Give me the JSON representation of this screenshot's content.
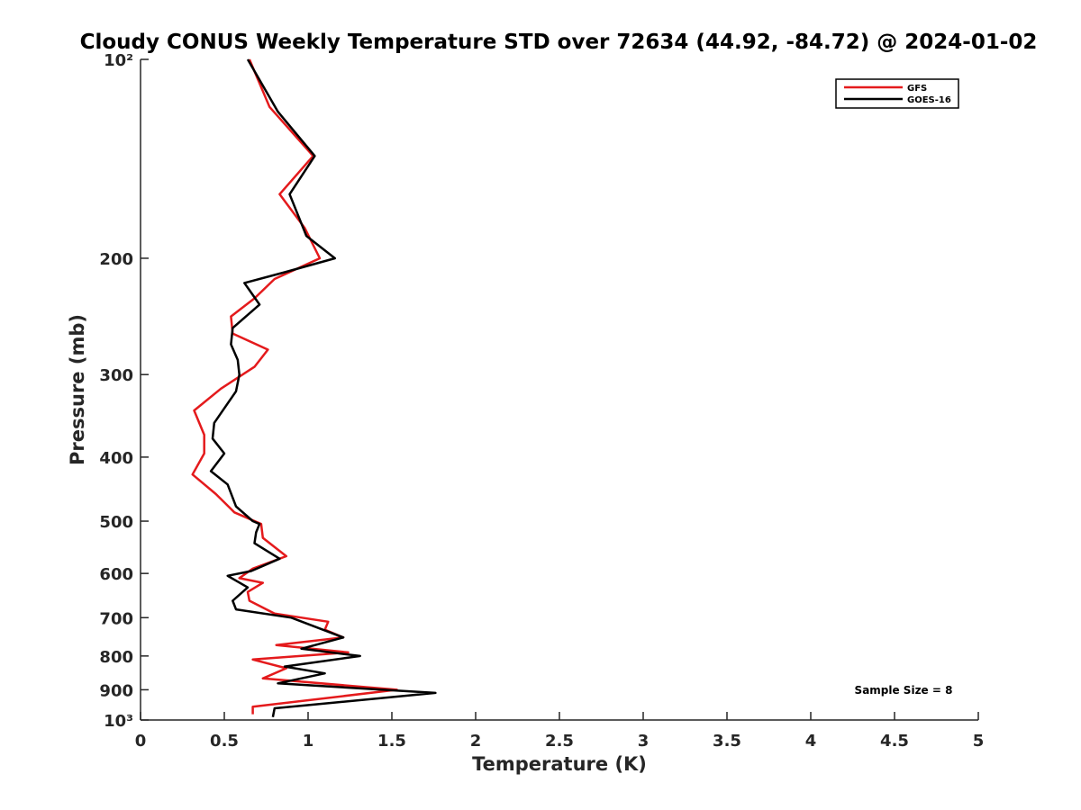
{
  "chart_data": {
    "type": "line",
    "title": "Cloudy CONUS Weekly Temperature STD over 72634 (44.92, -84.72) @ 2024-01-02",
    "xlabel": "Temperature (K)",
    "ylabel": "Pressure (mb)",
    "xlim": [
      0,
      5
    ],
    "ylim": [
      100,
      1000
    ],
    "y_scale": "log",
    "y_reversed": true,
    "x_ticks": [
      0,
      0.5,
      1,
      1.5,
      2,
      2.5,
      3,
      3.5,
      4,
      4.5,
      5
    ],
    "x_tick_labels": [
      "0",
      "0.5",
      "1",
      "1.5",
      "2",
      "2.5",
      "3",
      "3.5",
      "4",
      "4.5",
      "5"
    ],
    "y_ticks": [
      100,
      200,
      300,
      400,
      500,
      600,
      700,
      800,
      900,
      1000
    ],
    "y_tick_labels": [
      "10²",
      "200",
      "300",
      "400",
      "500",
      "600",
      "700",
      "800",
      "900",
      "10³"
    ],
    "legend_position": "top-right",
    "annotation": "Sample Size = 8",
    "series": [
      {
        "name": "GFS",
        "color": "#e41a1c",
        "x": [
          0.65,
          0.77,
          1.03,
          0.83,
          0.98,
          1.07,
          0.8,
          0.68,
          0.54,
          0.55,
          0.76,
          0.68,
          0.48,
          0.32,
          0.38,
          0.38,
          0.31,
          0.45,
          0.56,
          0.72,
          0.73,
          0.87,
          0.67,
          0.59,
          0.73,
          0.64,
          0.65,
          0.8,
          1.12,
          1.1,
          1.21,
          0.81,
          1.24,
          0.67,
          0.87,
          0.73,
          1.53,
          0.67,
          0.67
        ],
        "y": [
          100,
          118,
          140,
          160,
          180,
          200,
          215,
          230,
          245,
          260,
          275,
          292,
          315,
          340,
          370,
          395,
          425,
          455,
          485,
          505,
          530,
          565,
          590,
          610,
          620,
          640,
          660,
          690,
          710,
          730,
          750,
          770,
          790,
          810,
          835,
          865,
          900,
          955,
          980
        ]
      },
      {
        "name": "GOES-16",
        "color": "#000000",
        "x": [
          0.64,
          0.82,
          1.04,
          0.89,
          0.99,
          1.16,
          0.86,
          0.62,
          0.71,
          0.55,
          0.54,
          0.58,
          0.59,
          0.57,
          0.44,
          0.43,
          0.5,
          0.42,
          0.52,
          0.57,
          0.67,
          0.71,
          0.69,
          0.68,
          0.83,
          0.66,
          0.52,
          0.64,
          0.55,
          0.57,
          0.9,
          1.21,
          0.96,
          1.31,
          0.86,
          1.1,
          0.82,
          1.76,
          0.8,
          0.79
        ],
        "y": [
          100,
          120,
          140,
          160,
          185,
          200,
          210,
          218,
          235,
          255,
          270,
          285,
          300,
          318,
          355,
          375,
          395,
          420,
          440,
          475,
          500,
          505,
          520,
          540,
          570,
          595,
          605,
          630,
          660,
          680,
          700,
          750,
          780,
          800,
          830,
          850,
          880,
          910,
          960,
          990
        ]
      }
    ]
  }
}
